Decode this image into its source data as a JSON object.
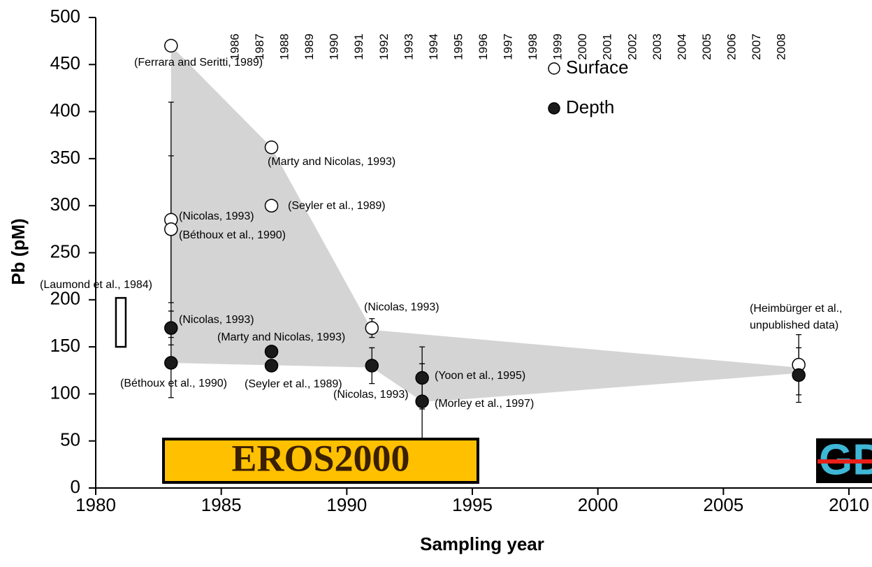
{
  "chart_data": {
    "type": "scatter",
    "xlabel": "Sampling year",
    "ylabel": "Pb (pM)",
    "xlim": [
      1980,
      2010
    ],
    "ylim": [
      0,
      500
    ],
    "xticks": [
      1980,
      1985,
      1990,
      1995,
      2000,
      2005,
      2010
    ],
    "yticks": [
      0,
      50,
      100,
      150,
      200,
      250,
      300,
      350,
      400,
      450,
      500
    ],
    "top_labels": [
      "1986",
      "1987",
      "1988",
      "1989",
      "1990",
      "1991",
      "1992",
      "1993",
      "1994",
      "1995",
      "1996",
      "1997",
      "1998",
      "1999",
      "2000",
      "2001",
      "2002",
      "2003",
      "2004",
      "2005",
      "2006",
      "2007",
      "2008"
    ],
    "series": [
      {
        "name": "Surface",
        "color": "#ffffff",
        "marker": "open",
        "x": [
          1983,
          1987,
          1987,
          1983,
          1983,
          1991,
          2008
        ],
        "values": [
          470,
          362,
          300,
          285,
          275,
          170,
          131
        ],
        "errors": [
          null,
          null,
          null,
          125,
          78,
          10,
          32
        ]
      },
      {
        "name": "Depth",
        "color": "#1a1a1a",
        "marker": "filled",
        "x": [
          1983,
          1983,
          1987,
          1987,
          1991,
          1993,
          1993,
          2008
        ],
        "values": [
          170,
          133,
          145,
          130,
          130,
          117,
          92,
          120
        ],
        "errors": [
          18,
          37,
          null,
          null,
          19,
          33,
          40,
          29
        ]
      }
    ],
    "envelope": {
      "color": "#d4d4d4",
      "x": [
        1983,
        1987,
        1991,
        2008,
        2008,
        1994,
        1993,
        1991,
        1983
      ],
      "values": [
        470,
        362,
        168,
        128,
        122,
        93,
        92,
        128,
        133
      ]
    },
    "range_box": {
      "x": 1981,
      "low": 150,
      "high": 202
    },
    "annotations": [
      "(Ferrara and Seritti, 1989)",
      "(Marty and Nicolas, 1993)",
      "(Seyler et al., 1989)",
      "(Nicolas, 1993)",
      "(Béthoux et al., 1990)",
      "(Laumond et al., 1984)",
      "(Nicolas, 1993)",
      "(Nicolas, 1993)",
      "(Marty and Nicolas, 1993)",
      "(Béthoux et al., 1990)",
      "(Seyler et al., 1989)",
      "(Nicolas, 1993)",
      "(Yoon et al., 1995)",
      "(Morley et al., 1997)",
      "(Heimbürger et al.,",
      "unpublished data)"
    ],
    "logo_left": "EROS2000",
    "logo_right": "GD"
  }
}
